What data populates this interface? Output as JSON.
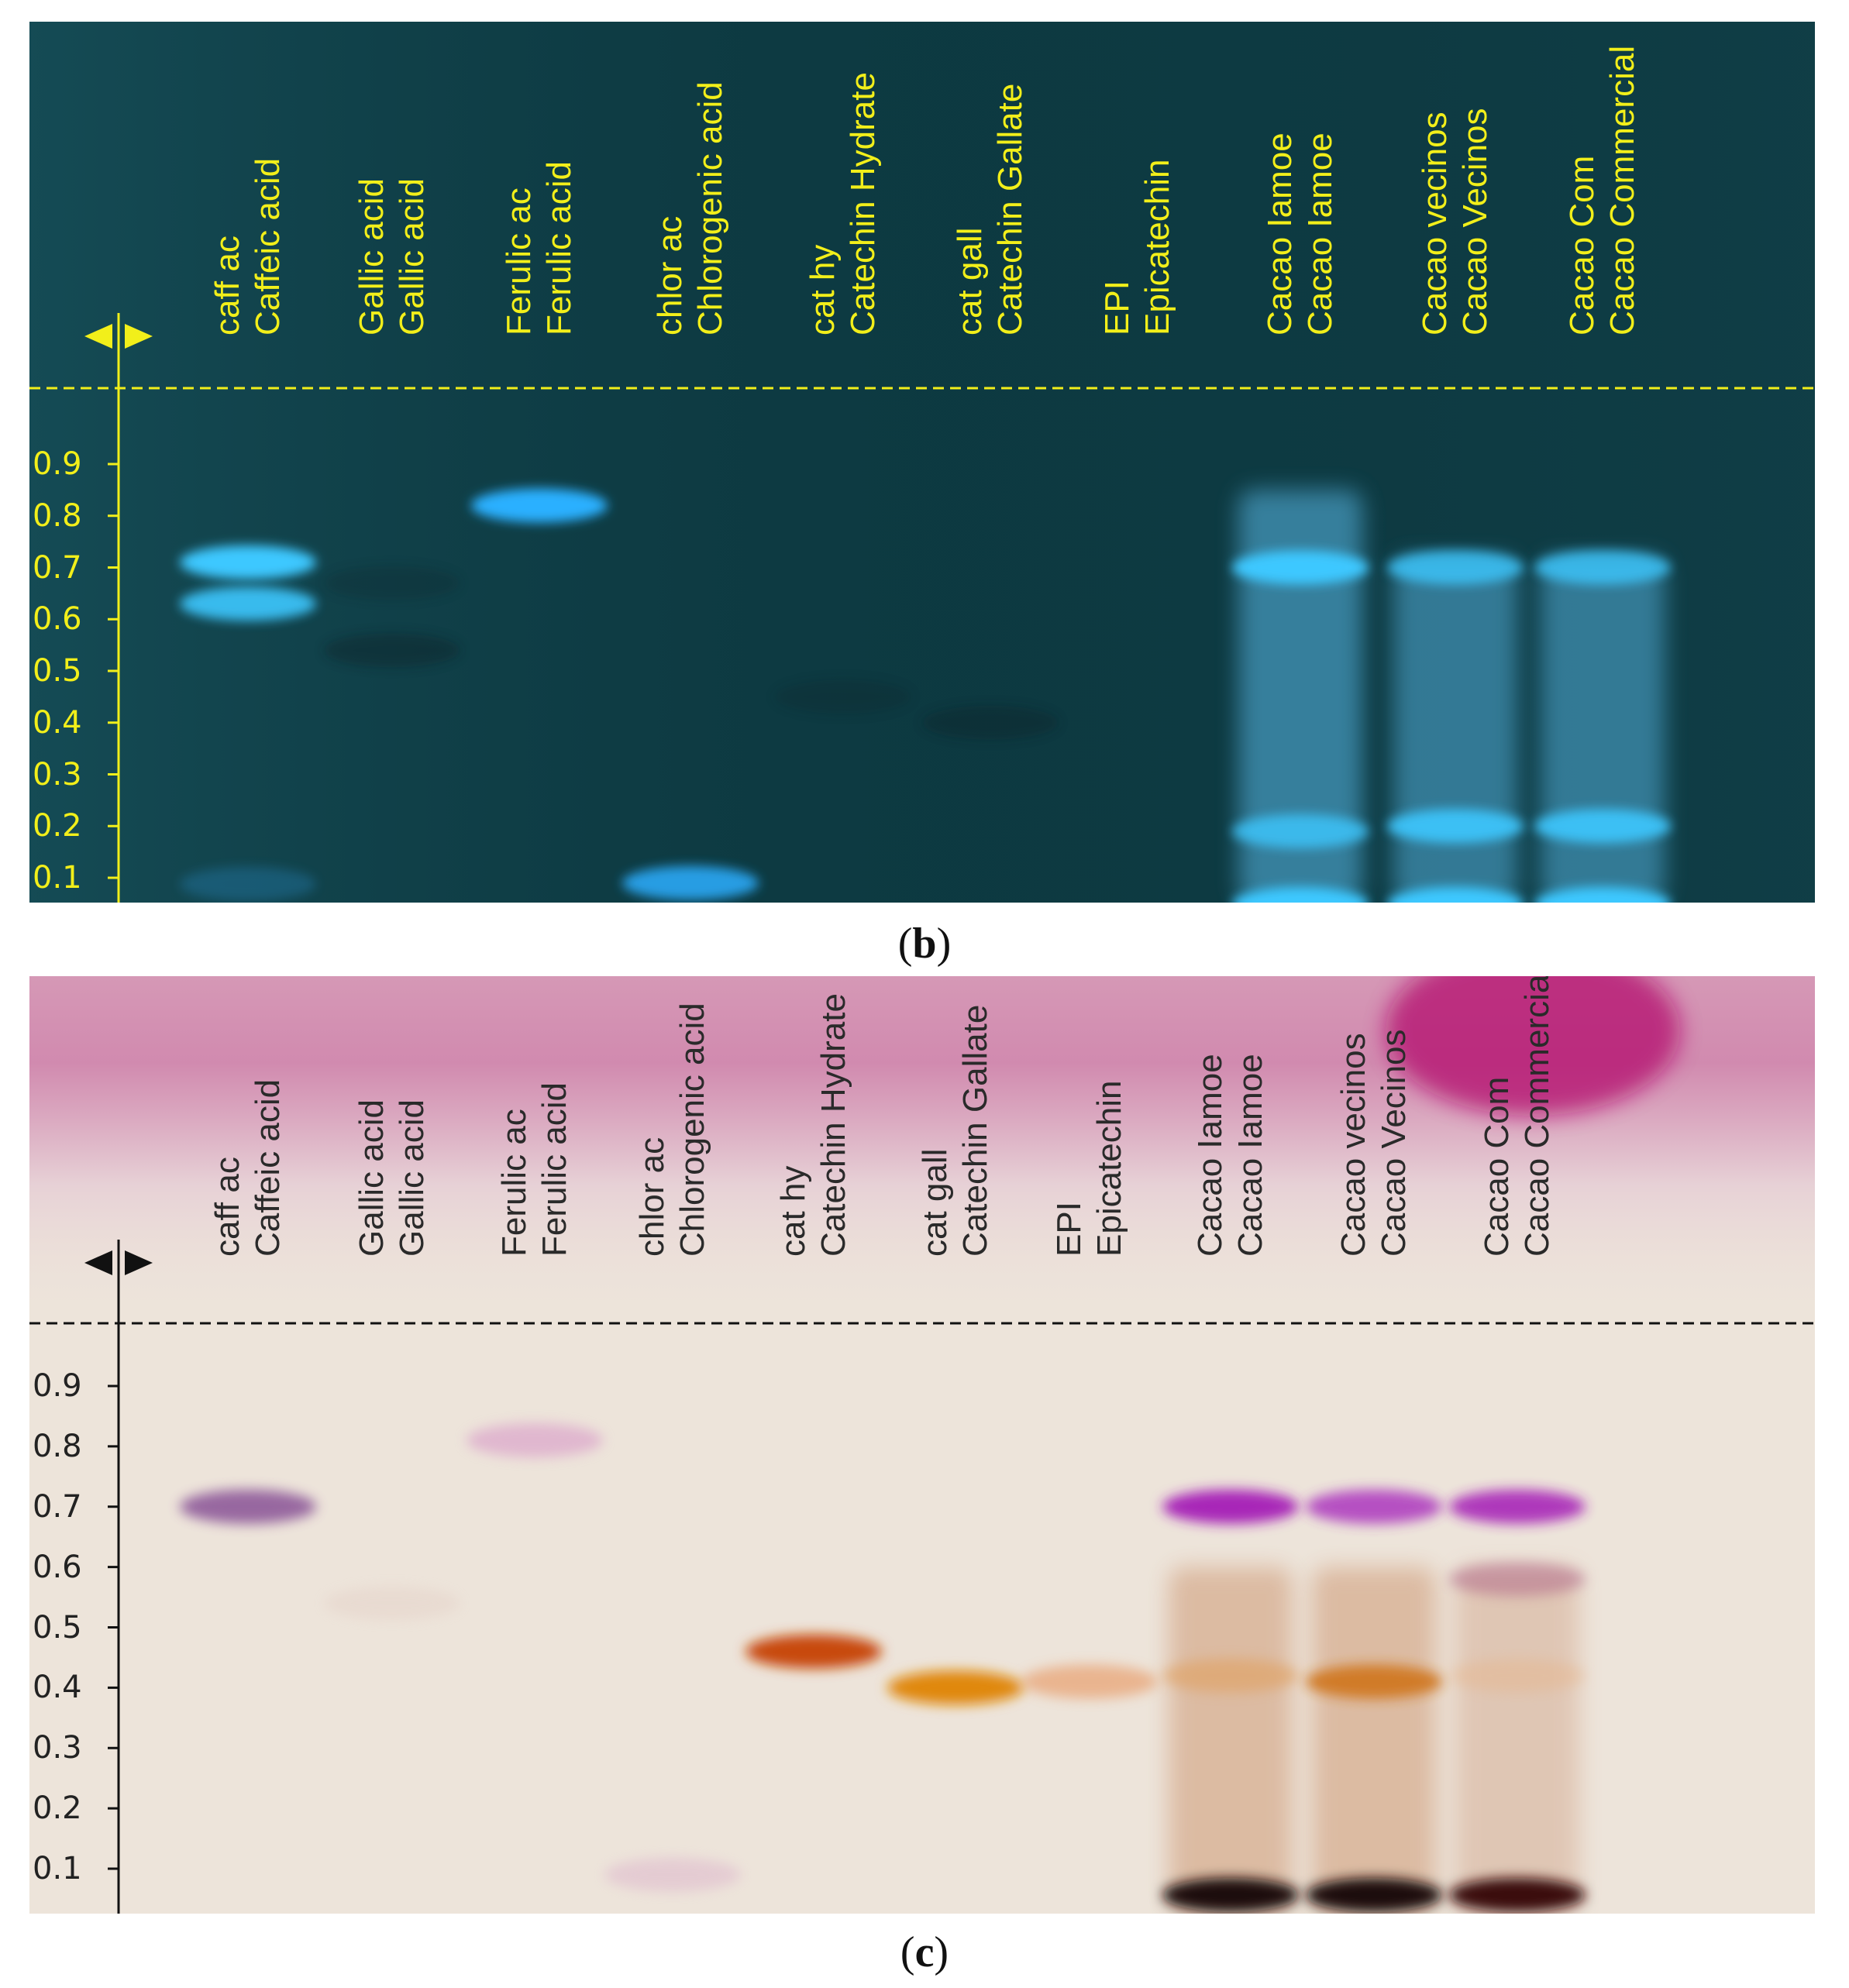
{
  "panels": [
    {
      "id": "b",
      "caption_letter": "b",
      "colors": {
        "background": "#0d3c44",
        "label": "#f2ef1a",
        "line": "#f2ef1a",
        "band": "#2bb6ff"
      },
      "lanes": [
        {
          "short": "caff ac",
          "full": "Caffeic acid"
        },
        {
          "short": "Gallic acid",
          "full": "Gallic acid"
        },
        {
          "short": "Ferulic ac",
          "full": "Ferulic acid"
        },
        {
          "short": "chlor ac",
          "full": "Chlorogenic acid"
        },
        {
          "short": "cat hy",
          "full": "Catechin Hydrate"
        },
        {
          "short": "cat gall",
          "full": "Catechin Gallate"
        },
        {
          "short": "EPI",
          "full": "Epicatechin"
        },
        {
          "short": "Cacao Iamoe",
          "full": "Cacao Iamoe"
        },
        {
          "short": "Cacao vecinos",
          "full": "Cacao Vecinos"
        },
        {
          "short": "Cacao Com",
          "full": "Cacao Commercial"
        }
      ],
      "rf_ticks": [
        "0.9",
        "0.8",
        "0.7",
        "0.6",
        "0.5",
        "0.4",
        "0.3",
        "0.2",
        "0.1"
      ],
      "bands": [
        {
          "lane": 0,
          "rf": 0.71,
          "intensity": 1.0,
          "color": "#3ec8ff"
        },
        {
          "lane": 0,
          "rf": 0.63,
          "intensity": 0.9,
          "color": "#3ec8ff"
        },
        {
          "lane": 0,
          "rf": 0.0,
          "intensity": 0.3,
          "color": "#2a8fcf"
        },
        {
          "lane": 1,
          "rf": 0.54,
          "intensity": 0.35,
          "color": "#081f24"
        },
        {
          "lane": 1,
          "rf": 0.67,
          "intensity": 0.2,
          "color": "#081f24"
        },
        {
          "lane": 2,
          "rf": 0.82,
          "intensity": 1.0,
          "color": "#2ab0ff"
        },
        {
          "lane": 3,
          "rf": 0.09,
          "intensity": 0.9,
          "color": "#2aa8f5"
        },
        {
          "lane": 4,
          "rf": 0.45,
          "intensity": 0.2,
          "color": "#081f24"
        },
        {
          "lane": 5,
          "rf": 0.4,
          "intensity": 0.3,
          "color": "#081f24"
        },
        {
          "lane": 7,
          "rf": 0.7,
          "intensity": 1.0,
          "color": "#3ec8ff"
        },
        {
          "lane": 7,
          "rf": 0.19,
          "intensity": 0.8,
          "color": "#3ec8ff"
        },
        {
          "lane": 7,
          "rf": 0.05,
          "intensity": 1.0,
          "color": "#3ec8ff"
        },
        {
          "lane": 8,
          "rf": 0.7,
          "intensity": 0.8,
          "color": "#3ec8ff"
        },
        {
          "lane": 8,
          "rf": 0.2,
          "intensity": 0.9,
          "color": "#3ec8ff"
        },
        {
          "lane": 8,
          "rf": 0.05,
          "intensity": 1.0,
          "color": "#3ec8ff"
        },
        {
          "lane": 9,
          "rf": 0.7,
          "intensity": 0.8,
          "color": "#3ec8ff"
        },
        {
          "lane": 9,
          "rf": 0.2,
          "intensity": 0.9,
          "color": "#3ec8ff"
        },
        {
          "lane": 9,
          "rf": 0.05,
          "intensity": 1.0,
          "color": "#3ec8ff"
        }
      ],
      "smears": [
        {
          "lane": 7,
          "rf_low": 0.02,
          "rf_high": 0.85,
          "intensity": 0.55,
          "color": "#58b8e6"
        },
        {
          "lane": 8,
          "rf_low": 0.02,
          "rf_high": 0.72,
          "intensity": 0.5,
          "color": "#58b8e6"
        },
        {
          "lane": 9,
          "rf_low": 0.02,
          "rf_high": 0.72,
          "intensity": 0.5,
          "color": "#58b8e6"
        }
      ]
    },
    {
      "id": "c",
      "caption_letter": "c",
      "colors": {
        "background": "#ede4da",
        "top_stain": "#c25a98",
        "label": "#2a2a2a",
        "line": "#111111"
      },
      "lanes": [
        {
          "short": "caff ac",
          "full": "Caffeic acid"
        },
        {
          "short": "Gallic acid",
          "full": "Gallic acid"
        },
        {
          "short": "Ferulic ac",
          "full": "Ferulic acid"
        },
        {
          "short": "chlor ac",
          "full": "Chlorogenic acid"
        },
        {
          "short": "cat hy",
          "full": "Catechin Hydrate"
        },
        {
          "short": "cat gall",
          "full": "Catechin Gallate"
        },
        {
          "short": "EPI",
          "full": "Epicatechin"
        },
        {
          "short": "Cacao Iamoe",
          "full": "Cacao Iamoe"
        },
        {
          "short": "Cacao vecinos",
          "full": "Cacao Vecinos"
        },
        {
          "short": "Cacao Com",
          "full": "Cacao Commercia"
        }
      ],
      "rf_ticks": [
        "0.9",
        "0.8",
        "0.7",
        "0.6",
        "0.5",
        "0.4",
        "0.3",
        "0.2",
        "0.1"
      ],
      "bands": [
        {
          "lane": 0,
          "rf": 0.7,
          "intensity": 0.9,
          "color": "#8e5a9a"
        },
        {
          "lane": 1,
          "rf": 0.54,
          "intensity": 0.2,
          "color": "#d8b8b0"
        },
        {
          "lane": 2,
          "rf": 0.81,
          "intensity": 0.6,
          "color": "#d89ac8"
        },
        {
          "lane": 3,
          "rf": 0.09,
          "intensity": 0.4,
          "color": "#d8a8c8"
        },
        {
          "lane": 4,
          "rf": 0.46,
          "intensity": 1.0,
          "color": "#c84a08"
        },
        {
          "lane": 5,
          "rf": 0.4,
          "intensity": 1.0,
          "color": "#e0880a"
        },
        {
          "lane": 6,
          "rf": 0.41,
          "intensity": 0.7,
          "color": "#e8a070"
        },
        {
          "lane": 7,
          "rf": 0.7,
          "intensity": 1.0,
          "color": "#a828b8"
        },
        {
          "lane": 7,
          "rf": 0.42,
          "intensity": 0.6,
          "color": "#e0a060"
        },
        {
          "lane": 7,
          "rf": 0.01,
          "intensity": 1.0,
          "color": "#1a0a08"
        },
        {
          "lane": 8,
          "rf": 0.7,
          "intensity": 0.9,
          "color": "#b040c0"
        },
        {
          "lane": 8,
          "rf": 0.41,
          "intensity": 0.95,
          "color": "#d07820"
        },
        {
          "lane": 8,
          "rf": 0.01,
          "intensity": 1.0,
          "color": "#1a0a08"
        },
        {
          "lane": 9,
          "rf": 0.7,
          "intensity": 0.9,
          "color": "#a828b8"
        },
        {
          "lane": 9,
          "rf": 0.58,
          "intensity": 0.4,
          "color": "#a04878"
        },
        {
          "lane": 9,
          "rf": 0.42,
          "intensity": 0.35,
          "color": "#e8b080"
        },
        {
          "lane": 9,
          "rf": 0.01,
          "intensity": 1.0,
          "color": "#3a0a08"
        }
      ],
      "smears": [
        {
          "lane": 7,
          "rf_low": 0.0,
          "rf_high": 0.6,
          "intensity": 0.45,
          "color": "#c88a60"
        },
        {
          "lane": 8,
          "rf_low": 0.0,
          "rf_high": 0.6,
          "intensity": 0.45,
          "color": "#c88a60"
        },
        {
          "lane": 9,
          "rf_low": 0.0,
          "rf_high": 0.6,
          "intensity": 0.35,
          "color": "#c89070"
        }
      ]
    }
  ]
}
